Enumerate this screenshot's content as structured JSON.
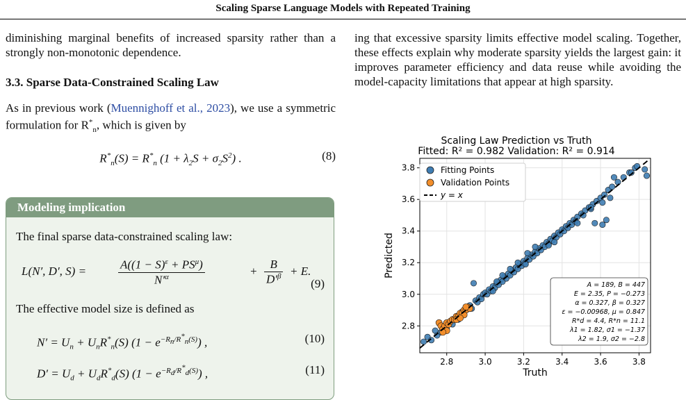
{
  "header": {
    "title": "Scaling Sparse Language Models with Repeated Training"
  },
  "left": {
    "para1": "diminishing marginal benefits of increased sparsity rather than a strongly non-monotonic dependence.",
    "section": "3.3. Sparse Data-Constrained Scaling Law",
    "para2_a": "As in previous work (",
    "para2_cite": "Muennighoff et al., 2023",
    "para2_b": "), we use a symmetric formulation for R",
    "para2_c": ", which is given by",
    "eq8": "R*n(S) = R*n (1 + λ2S + σ2S²) .",
    "eq8_num": "(8)"
  },
  "box": {
    "title": "Modeling implication",
    "line1": "The final sparse data-constrained scaling law:",
    "eq9_lhs": "L(N′, D′, S) =",
    "eq9_num": "(9)",
    "line2": "The effective model size is defined as",
    "eq10": "N′ = Un + UnR*n(S) (1 − e^(−Rn/R*n(S))) ,",
    "eq10_num": "(10)",
    "eq11": "D′ = Ud + UdR*d(S) (1 − e^(−Rd/R*d(S))) ,",
    "eq11_num": "(11)"
  },
  "right": {
    "para": "ing that excessive sparsity limits effective model scaling. Together, these effects explain why moderate sparsity yields the largest gain: it improves parameter efficiency and data reuse while avoiding the model-capacity limitations that appear at high sparsity."
  },
  "chart_data": {
    "type": "scatter",
    "title": "Scaling Law Prediction vs Truth",
    "subtitle": "Fitted: R² = 0.982     Validation: R² = 0.914",
    "xlabel": "Truth",
    "ylabel": "Predicted",
    "xlim": [
      2.66,
      3.86
    ],
    "ylim": [
      2.63,
      3.86
    ],
    "xticks": [
      "2.8",
      "3.0",
      "3.2",
      "3.4",
      "3.6",
      "3.8"
    ],
    "yticks": [
      "2.8",
      "3.0",
      "3.2",
      "3.4",
      "3.6",
      "3.8"
    ],
    "grid": true,
    "legend_position": "top-left",
    "legend": [
      "Fitting Points",
      "Validation Points",
      "y = x"
    ],
    "colors": {
      "fit": "#3f7db3",
      "val": "#f28e2b",
      "line": "#000000"
    },
    "params": [
      "A = 189,  B = 447",
      "E = 2.35,  P = −0.273",
      "α = 0.327,  β = 0.327",
      "ε = −0.00968,  μ = 0.847",
      "R*d = 4.4,  R*n = 11.1",
      "λ1 = 1.82,  σ1 = −1.37",
      "λ2 = 1.9,  σ2 = −2.8"
    ],
    "fitting_points": [
      [
        2.68,
        2.7
      ],
      [
        2.7,
        2.73
      ],
      [
        2.72,
        2.71
      ],
      [
        2.74,
        2.77
      ],
      [
        2.75,
        2.74
      ],
      [
        2.77,
        2.76
      ],
      [
        2.79,
        2.8
      ],
      [
        2.8,
        2.78
      ],
      [
        2.82,
        2.83
      ],
      [
        2.83,
        2.81
      ],
      [
        2.85,
        2.86
      ],
      [
        2.86,
        2.84
      ],
      [
        2.88,
        2.89
      ],
      [
        2.89,
        2.87
      ],
      [
        2.9,
        2.91
      ],
      [
        2.92,
        2.93
      ],
      [
        2.93,
        2.91
      ],
      [
        2.95,
        2.96
      ],
      [
        2.96,
        2.95
      ],
      [
        2.97,
        2.98
      ],
      [
        2.98,
        2.97
      ],
      [
        2.99,
        3.0
      ],
      [
        3.0,
        3.01
      ],
      [
        3.01,
        3.0
      ],
      [
        3.02,
        3.03
      ],
      [
        3.03,
        3.02
      ],
      [
        3.04,
        3.05
      ],
      [
        3.05,
        3.04
      ],
      [
        3.06,
        3.07
      ],
      [
        3.07,
        3.06
      ],
      [
        3.08,
        3.09
      ],
      [
        3.09,
        3.08
      ],
      [
        3.1,
        3.11
      ],
      [
        3.11,
        3.1
      ],
      [
        3.12,
        3.13
      ],
      [
        3.13,
        3.12
      ],
      [
        3.14,
        3.15
      ],
      [
        3.15,
        3.14
      ],
      [
        3.16,
        3.17
      ],
      [
        3.17,
        3.16
      ],
      [
        3.18,
        3.19
      ],
      [
        3.19,
        3.18
      ],
      [
        3.2,
        3.21
      ],
      [
        3.21,
        3.2
      ],
      [
        3.22,
        3.23
      ],
      [
        3.23,
        3.22
      ],
      [
        3.24,
        3.25
      ],
      [
        3.25,
        3.24
      ],
      [
        3.26,
        3.27
      ],
      [
        3.27,
        3.26
      ],
      [
        3.28,
        3.29
      ],
      [
        3.29,
        3.28
      ],
      [
        3.3,
        3.31
      ],
      [
        3.31,
        3.3
      ],
      [
        3.32,
        3.33
      ],
      [
        3.33,
        3.32
      ],
      [
        3.34,
        3.35
      ],
      [
        3.35,
        3.34
      ],
      [
        3.36,
        3.37
      ],
      [
        3.37,
        3.36
      ],
      [
        3.38,
        3.39
      ],
      [
        3.39,
        3.38
      ],
      [
        3.4,
        3.41
      ],
      [
        3.41,
        3.4
      ],
      [
        3.42,
        3.43
      ],
      [
        3.43,
        3.42
      ],
      [
        3.44,
        3.45
      ],
      [
        3.45,
        3.44
      ],
      [
        3.46,
        3.47
      ],
      [
        3.47,
        3.46
      ],
      [
        3.48,
        3.49
      ],
      [
        3.5,
        3.51
      ],
      [
        3.51,
        3.5
      ],
      [
        3.52,
        3.53
      ],
      [
        3.54,
        3.55
      ],
      [
        3.55,
        3.54
      ],
      [
        3.56,
        3.57
      ],
      [
        3.58,
        3.59
      ],
      [
        3.6,
        3.61
      ],
      [
        3.62,
        3.63
      ],
      [
        3.64,
        3.66
      ],
      [
        3.66,
        3.68
      ],
      [
        3.69,
        3.71
      ],
      [
        3.72,
        3.74
      ],
      [
        3.75,
        3.77
      ],
      [
        3.78,
        3.8
      ],
      [
        3.84,
        3.75
      ],
      [
        3.83,
        3.79
      ],
      [
        3.79,
        3.81
      ],
      [
        3.55,
        3.55
      ],
      [
        3.57,
        3.45
      ],
      [
        3.61,
        3.44
      ],
      [
        3.63,
        3.47
      ],
      [
        3.61,
        3.58
      ],
      [
        3.65,
        3.61
      ],
      [
        3.67,
        3.74
      ],
      [
        3.76,
        3.77
      ],
      [
        3.21,
        3.19
      ],
      [
        3.17,
        3.2
      ],
      [
        2.94,
        3.07
      ],
      [
        3.26,
        3.3
      ],
      [
        3.33,
        3.31
      ],
      [
        3.09,
        3.12
      ],
      [
        3.04,
        3.02
      ],
      [
        3.36,
        3.33
      ],
      [
        3.48,
        3.45
      ],
      [
        3.13,
        3.16
      ],
      [
        3.22,
        3.26
      ],
      [
        3.06,
        3.08
      ]
    ],
    "validation_points": [
      [
        2.76,
        2.82
      ],
      [
        2.77,
        2.8
      ],
      [
        2.78,
        2.78
      ],
      [
        2.79,
        2.8
      ],
      [
        2.8,
        2.82
      ],
      [
        2.81,
        2.81
      ],
      [
        2.82,
        2.83
      ],
      [
        2.83,
        2.84
      ],
      [
        2.84,
        2.84
      ],
      [
        2.85,
        2.86
      ],
      [
        2.86,
        2.86
      ],
      [
        2.87,
        2.88
      ],
      [
        2.88,
        2.88
      ],
      [
        2.89,
        2.9
      ],
      [
        2.9,
        2.9
      ],
      [
        2.91,
        2.92
      ],
      [
        2.89,
        2.87
      ],
      [
        2.85,
        2.84
      ],
      [
        2.92,
        2.91
      ],
      [
        2.8,
        2.77
      ],
      [
        2.87,
        2.85
      ],
      [
        2.9,
        2.92
      ],
      [
        2.78,
        2.76
      ]
    ]
  }
}
